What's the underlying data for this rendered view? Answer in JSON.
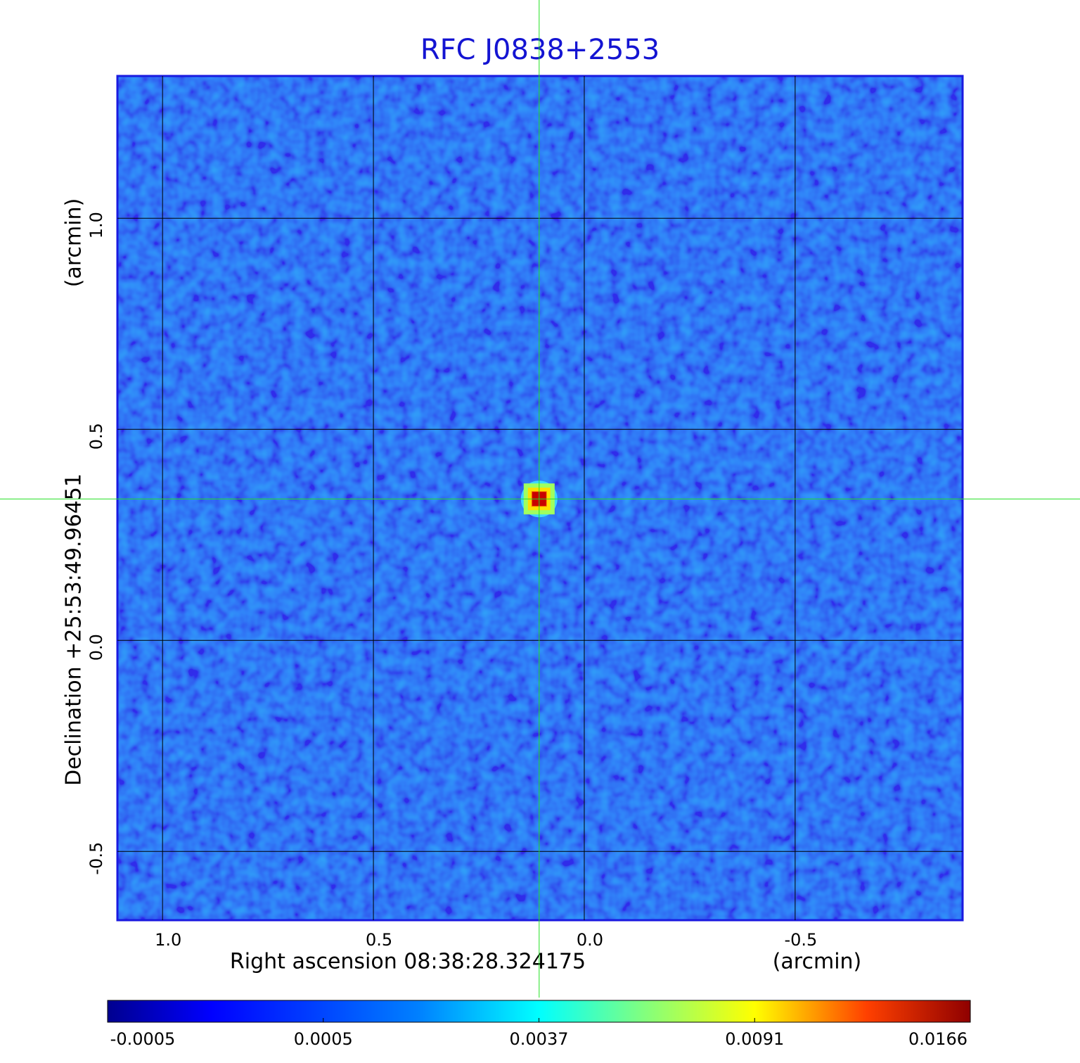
{
  "chart_data": {
    "type": "heatmap",
    "title": "RFC J0838+2553",
    "x_label": "Right ascension  08:38:28.324175",
    "x_unit": "(arcmin)",
    "y_label": "Declination  +25:53:49.96451",
    "y_unit": "(arcmin)",
    "xlim": [
      1.107,
      -0.897
    ],
    "xticks": [
      {
        "value": 1,
        "label": "1.0"
      },
      0.5,
      {
        "value": 0,
        "label": "0.0"
      },
      -0.5
    ],
    "ylim": [
      -0.663,
      1.337
    ],
    "yticks": [
      {
        "value": -0.5,
        "label": "-0.5"
      },
      {
        "value": 0,
        "label": "0.0"
      },
      0.5,
      {
        "value": 1,
        "label": "1.0"
      }
    ],
    "grid": true,
    "colormap": "jet",
    "colorbar": {
      "lim": [
        -0.0005,
        0.0166
      ],
      "ticks": [
        -0.0005,
        0.0005,
        0.0037,
        0.0091,
        0.0166
      ]
    },
    "peak": {
      "x": 0.107,
      "y": 0.335,
      "value": 0.0166
    }
  }
}
